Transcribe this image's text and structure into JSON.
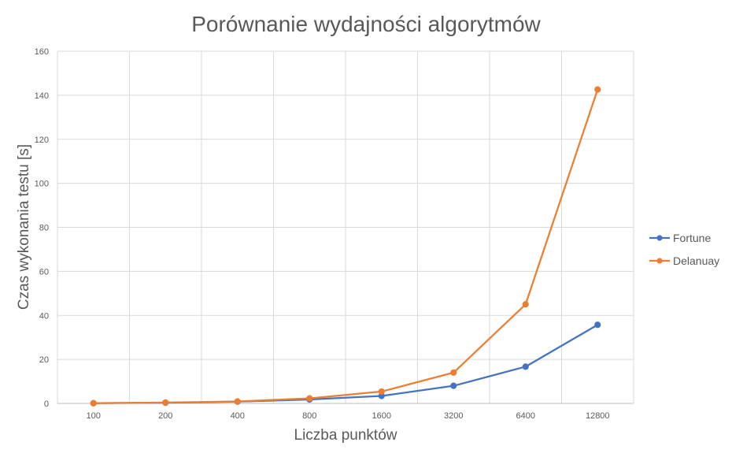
{
  "chart_data": {
    "type": "line",
    "title": "Porównanie wydajności algorytmów",
    "xlabel": "Liczba punktów",
    "ylabel": "Czas wykonania testu [s]",
    "categories": [
      "100",
      "200",
      "400",
      "800",
      "1600",
      "3200",
      "6400",
      "12800"
    ],
    "ylim": [
      0,
      160
    ],
    "yticks": [
      0,
      20,
      40,
      60,
      80,
      100,
      120,
      140,
      160
    ],
    "grid": true,
    "legend_position": "right",
    "series": [
      {
        "name": "Fortune",
        "color": "#4472C4",
        "values": [
          0.1,
          0.3,
          0.8,
          1.8,
          3.4,
          8.0,
          16.7,
          35.7
        ]
      },
      {
        "name": "Delanuay",
        "color": "#ED7D31",
        "values": [
          0.1,
          0.4,
          0.9,
          2.3,
          5.4,
          14.0,
          45.0,
          142.6
        ]
      }
    ]
  }
}
